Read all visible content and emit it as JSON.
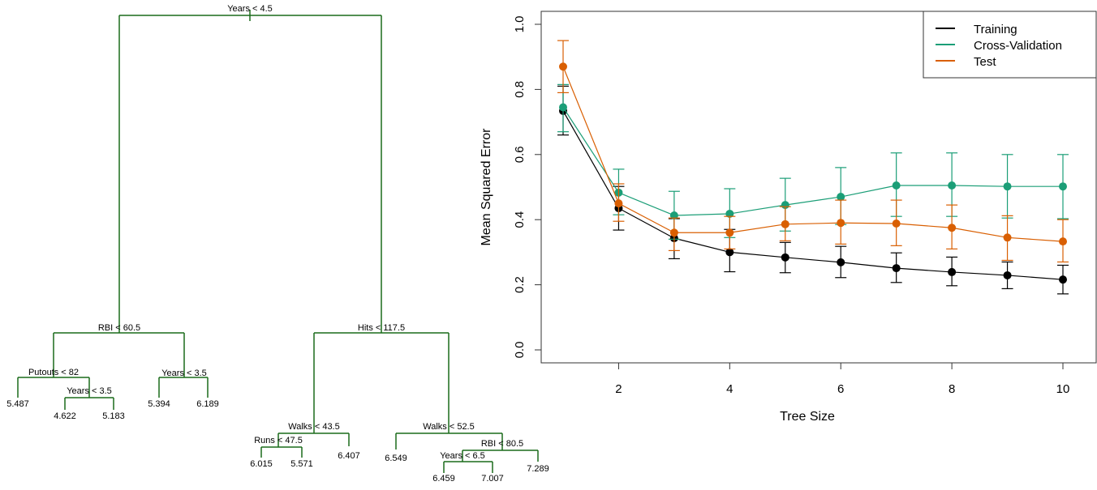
{
  "tree": {
    "color": "#1a6b1a",
    "splits": [
      {
        "id": "root",
        "label": "Years < 4.5"
      },
      {
        "id": "l",
        "label": "RBI < 60.5"
      },
      {
        "id": "ll",
        "label": "Putouts < 82"
      },
      {
        "id": "llr",
        "label": "Years < 3.5"
      },
      {
        "id": "lr",
        "label": "Years < 3.5"
      },
      {
        "id": "r",
        "label": "Hits < 117.5"
      },
      {
        "id": "rl",
        "label": "Walks < 43.5"
      },
      {
        "id": "rll",
        "label": "Runs < 47.5"
      },
      {
        "id": "rr",
        "label": "Walks < 52.5"
      },
      {
        "id": "rrr",
        "label": "RBI < 80.5"
      },
      {
        "id": "rrrl",
        "label": "Years < 6.5"
      }
    ],
    "leaves": [
      {
        "id": "lll",
        "label": "5.487"
      },
      {
        "id": "llrl",
        "label": "4.622"
      },
      {
        "id": "llrr",
        "label": "5.183"
      },
      {
        "id": "lrl",
        "label": "5.394"
      },
      {
        "id": "lrr",
        "label": "6.189"
      },
      {
        "id": "rlll",
        "label": "6.015"
      },
      {
        "id": "rllr",
        "label": "5.571"
      },
      {
        "id": "rlr",
        "label": "6.407"
      },
      {
        "id": "rrl",
        "label": "6.549"
      },
      {
        "id": "rrrll",
        "label": "6.459"
      },
      {
        "id": "rrrlr",
        "label": "7.007"
      },
      {
        "id": "rrrr",
        "label": "7.289"
      }
    ]
  },
  "chart_data": {
    "type": "line",
    "xlabel": "Tree Size",
    "ylabel": "Mean Squared Error",
    "xlim": [
      0.8,
      10.4
    ],
    "ylim": [
      0,
      1.0
    ],
    "xticks": [
      2,
      4,
      6,
      8,
      10
    ],
    "yticks": [
      0.0,
      0.2,
      0.4,
      0.6,
      0.8,
      1.0
    ],
    "ytick_labels": [
      "0.0",
      "0.2",
      "0.4",
      "0.6",
      "0.8",
      "1.0"
    ],
    "grid": false,
    "legend_position": "top-right",
    "x": [
      1,
      2,
      3,
      4,
      5,
      6,
      7,
      8,
      9,
      10
    ],
    "series": [
      {
        "name": "Training",
        "color": "#000000",
        "values": [
          0.734,
          0.435,
          0.343,
          0.3,
          0.284,
          0.269,
          0.251,
          0.239,
          0.229,
          0.216
        ],
        "lower": [
          0.66,
          0.368,
          0.28,
          0.24,
          0.237,
          0.222,
          0.207,
          0.197,
          0.188,
          0.172
        ],
        "upper": [
          0.81,
          0.502,
          0.403,
          0.37,
          0.33,
          0.318,
          0.298,
          0.285,
          0.27,
          0.26
        ]
      },
      {
        "name": "Cross-Validation",
        "color": "#1b9e77",
        "values": [
          0.745,
          0.483,
          0.413,
          0.418,
          0.445,
          0.47,
          0.505,
          0.505,
          0.502,
          0.502
        ],
        "lower": [
          0.67,
          0.415,
          0.34,
          0.345,
          0.365,
          0.385,
          0.41,
          0.41,
          0.405,
          0.403
        ],
        "upper": [
          0.815,
          0.555,
          0.487,
          0.495,
          0.527,
          0.56,
          0.605,
          0.605,
          0.6,
          0.6
        ]
      },
      {
        "name": "Test",
        "color": "#d95f02",
        "values": [
          0.87,
          0.45,
          0.36,
          0.36,
          0.386,
          0.39,
          0.388,
          0.375,
          0.345,
          0.333
        ],
        "lower": [
          0.79,
          0.395,
          0.305,
          0.31,
          0.335,
          0.325,
          0.32,
          0.31,
          0.275,
          0.27
        ],
        "upper": [
          0.95,
          0.51,
          0.405,
          0.41,
          0.44,
          0.46,
          0.46,
          0.445,
          0.412,
          0.4
        ]
      }
    ]
  }
}
